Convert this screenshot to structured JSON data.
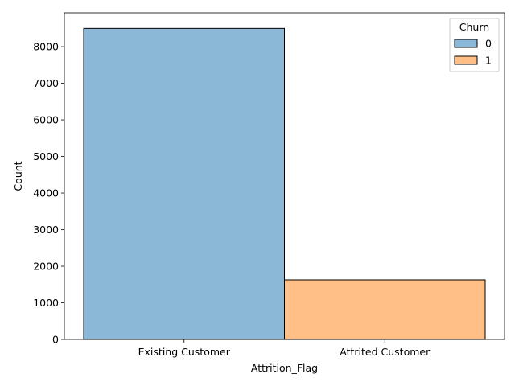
{
  "chart_data": {
    "type": "bar",
    "xlabel": "Attrition_Flag",
    "ylabel": "Count",
    "categories": [
      "Existing Customer",
      "Attrited Customer"
    ],
    "series": [
      {
        "name": "0",
        "color": "#8cb8d8",
        "values": [
          8500,
          0
        ]
      },
      {
        "name": "1",
        "color": "#ffbf87",
        "values": [
          0,
          1627
        ]
      }
    ],
    "ylim": [
      0,
      8925
    ],
    "yticks": [
      0,
      1000,
      2000,
      3000,
      4000,
      5000,
      6000,
      7000,
      8000
    ],
    "legend": {
      "title": "Churn",
      "placement": "top-right"
    },
    "grid": false
  }
}
